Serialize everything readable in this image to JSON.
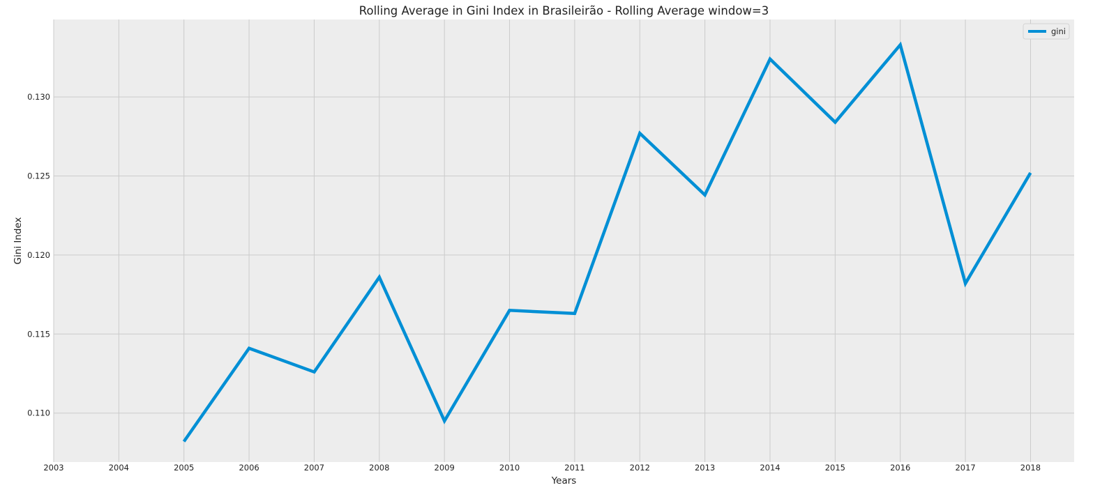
{
  "chart_data": {
    "type": "line",
    "title": "Rolling Average in Gini Index in Brasileirão - Rolling Average window=3",
    "xlabel": "Years",
    "ylabel": "Gini Index",
    "x_ticks": [
      "2003",
      "2004",
      "2005",
      "2006",
      "2007",
      "2008",
      "2009",
      "2010",
      "2011",
      "2012",
      "2013",
      "2014",
      "2015",
      "2016",
      "2017",
      "2018"
    ],
    "y_ticks": [
      "0.110",
      "0.115",
      "0.120",
      "0.125",
      "0.130"
    ],
    "xlim": [
      2003,
      2018.67
    ],
    "ylim": [
      0.1069,
      0.1349
    ],
    "grid": true,
    "legend_position": "top-right",
    "series": [
      {
        "name": "gini",
        "color": "#008fd5",
        "x": [
          2005,
          2006,
          2007,
          2008,
          2009,
          2010,
          2011,
          2012,
          2013,
          2014,
          2015,
          2016,
          2017,
          2018
        ],
        "y": [
          0.1082,
          0.1141,
          0.1126,
          0.1186,
          0.1095,
          0.1165,
          0.1163,
          0.1277,
          0.1238,
          0.1324,
          0.1284,
          0.1333,
          0.1182,
          0.1252
        ]
      }
    ]
  }
}
